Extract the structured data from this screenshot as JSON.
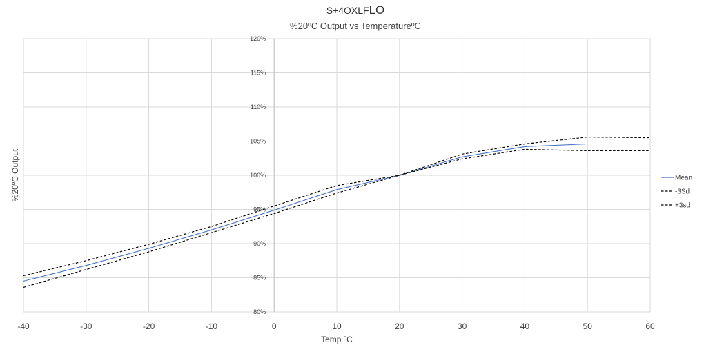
{
  "chart_data": {
    "type": "line",
    "title_prefix": "S+4OXLF",
    "title_suffix": "LO",
    "subtitle": "%20ºC Output vs TemperatureºC",
    "xlabel": "Temp ºC",
    "ylabel": "%20ºC Output",
    "xlim": [
      -40,
      60
    ],
    "ylim": [
      80,
      120
    ],
    "x_ticks": [
      -40,
      -30,
      -20,
      -10,
      0,
      10,
      20,
      30,
      40,
      50,
      60
    ],
    "x_tick_labels": [
      "-40",
      "-30",
      "-20",
      "-10",
      "0",
      "10",
      "20",
      "30",
      "40",
      "50",
      "60"
    ],
    "y_ticks": [
      80,
      85,
      90,
      95,
      100,
      105,
      110,
      115,
      120
    ],
    "y_tick_labels": [
      "80%",
      "85%",
      "90%",
      "95%",
      "100%",
      "105%",
      "110%",
      "115%",
      "120%"
    ],
    "grid": true,
    "legend_position": "right",
    "x": [
      -40,
      -30,
      -20,
      -10,
      0,
      10,
      20,
      30,
      40,
      50,
      60
    ],
    "series": [
      {
        "name": "Mean",
        "color": "#4472c4",
        "dash": "solid",
        "values": [
          84.5,
          86.8,
          89.3,
          92.0,
          94.9,
          97.9,
          100.0,
          102.7,
          104.2,
          104.6,
          104.6
        ]
      },
      {
        "name": "-3Sd",
        "color": "#000000",
        "dash": "dashed",
        "values": [
          83.6,
          86.2,
          88.8,
          91.6,
          94.4,
          97.4,
          100.0,
          102.4,
          103.8,
          103.6,
          103.6
        ]
      },
      {
        "name": "+3sd",
        "color": "#000000",
        "dash": "dashed",
        "values": [
          85.3,
          87.5,
          89.9,
          92.5,
          95.5,
          98.5,
          100.0,
          103.1,
          104.6,
          105.6,
          105.5
        ]
      }
    ]
  }
}
